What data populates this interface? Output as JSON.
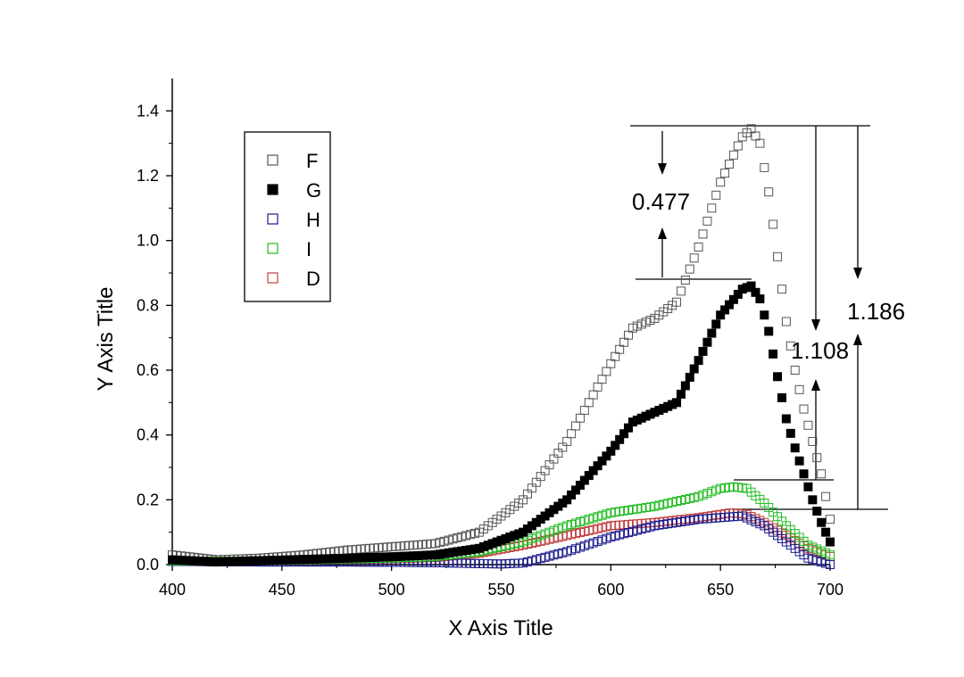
{
  "chart_data": {
    "type": "scatter",
    "xlabel": "X Axis Title",
    "ylabel": "Y Axis Title",
    "xlim": [
      400,
      700
    ],
    "ylim": [
      0,
      1.5
    ],
    "xticks": [
      "400",
      "450",
      "500",
      "550",
      "600",
      "650",
      "700"
    ],
    "yticks": [
      "0.0",
      "0.2",
      "0.4",
      "0.6",
      "0.8",
      "1.0",
      "1.2",
      "1.4"
    ],
    "x_step": 2,
    "series": [
      {
        "name": "F",
        "color": "#555555",
        "marker": "open-square",
        "points": [
          [
            400,
            0.03
          ],
          [
            420,
            0.015
          ],
          [
            440,
            0.02
          ],
          [
            460,
            0.03
          ],
          [
            480,
            0.045
          ],
          [
            500,
            0.055
          ],
          [
            520,
            0.065
          ],
          [
            540,
            0.1
          ],
          [
            560,
            0.2
          ],
          [
            580,
            0.38
          ],
          [
            600,
            0.62
          ],
          [
            610,
            0.73
          ],
          [
            620,
            0.76
          ],
          [
            630,
            0.81
          ],
          [
            640,
            0.98
          ],
          [
            650,
            1.18
          ],
          [
            660,
            1.32
          ],
          [
            664,
            1.345
          ],
          [
            668,
            1.3
          ],
          [
            672,
            1.15
          ],
          [
            676,
            0.95
          ],
          [
            680,
            0.75
          ],
          [
            684,
            0.6
          ],
          [
            688,
            0.48
          ],
          [
            692,
            0.38
          ],
          [
            696,
            0.28
          ],
          [
            700,
            0.14
          ]
        ]
      },
      {
        "name": "G",
        "color": "#000000",
        "marker": "filled-square",
        "points": [
          [
            400,
            0.015
          ],
          [
            420,
            0.008
          ],
          [
            440,
            0.012
          ],
          [
            460,
            0.016
          ],
          [
            480,
            0.02
          ],
          [
            500,
            0.024
          ],
          [
            520,
            0.03
          ],
          [
            540,
            0.05
          ],
          [
            560,
            0.1
          ],
          [
            580,
            0.2
          ],
          [
            600,
            0.35
          ],
          [
            610,
            0.44
          ],
          [
            620,
            0.47
          ],
          [
            630,
            0.5
          ],
          [
            640,
            0.63
          ],
          [
            650,
            0.77
          ],
          [
            660,
            0.85
          ],
          [
            664,
            0.86
          ],
          [
            668,
            0.82
          ],
          [
            672,
            0.72
          ],
          [
            676,
            0.58
          ],
          [
            680,
            0.45
          ],
          [
            684,
            0.36
          ],
          [
            688,
            0.28
          ],
          [
            692,
            0.2
          ],
          [
            696,
            0.13
          ],
          [
            700,
            0.07
          ]
        ]
      },
      {
        "name": "H",
        "color": "#1a1a8c",
        "marker": "open-square",
        "points": [
          [
            400,
            0.01
          ],
          [
            440,
            0.008
          ],
          [
            480,
            0.008
          ],
          [
            520,
            0.006
          ],
          [
            540,
            0.003
          ],
          [
            550,
            0.002
          ],
          [
            560,
            0.005
          ],
          [
            580,
            0.04
          ],
          [
            600,
            0.085
          ],
          [
            620,
            0.12
          ],
          [
            640,
            0.14
          ],
          [
            660,
            0.15
          ],
          [
            670,
            0.12
          ],
          [
            680,
            0.07
          ],
          [
            690,
            0.02
          ],
          [
            700,
            0.0
          ]
        ]
      },
      {
        "name": "I",
        "color": "#22bb22",
        "marker": "open-square",
        "points": [
          [
            400,
            0.012
          ],
          [
            420,
            0.01
          ],
          [
            440,
            0.012
          ],
          [
            460,
            0.015
          ],
          [
            480,
            0.018
          ],
          [
            500,
            0.02
          ],
          [
            520,
            0.025
          ],
          [
            540,
            0.04
          ],
          [
            560,
            0.07
          ],
          [
            580,
            0.12
          ],
          [
            600,
            0.16
          ],
          [
            620,
            0.18
          ],
          [
            640,
            0.21
          ],
          [
            650,
            0.235
          ],
          [
            656,
            0.24
          ],
          [
            662,
            0.235
          ],
          [
            670,
            0.19
          ],
          [
            680,
            0.12
          ],
          [
            690,
            0.06
          ],
          [
            700,
            0.03
          ]
        ]
      },
      {
        "name": "D",
        "color": "#c04040",
        "marker": "open-square",
        "points": [
          [
            400,
            0.012
          ],
          [
            420,
            0.01
          ],
          [
            440,
            0.012
          ],
          [
            460,
            0.014
          ],
          [
            480,
            0.016
          ],
          [
            500,
            0.018
          ],
          [
            520,
            0.022
          ],
          [
            540,
            0.035
          ],
          [
            560,
            0.06
          ],
          [
            580,
            0.09
          ],
          [
            600,
            0.12
          ],
          [
            620,
            0.13
          ],
          [
            640,
            0.145
          ],
          [
            655,
            0.16
          ],
          [
            662,
            0.155
          ],
          [
            670,
            0.13
          ],
          [
            680,
            0.09
          ],
          [
            690,
            0.05
          ],
          [
            700,
            0.025
          ]
        ]
      }
    ],
    "annotations": [
      {
        "text": "0.477",
        "from": 0.88,
        "to": 1.357
      },
      {
        "text": "1.108",
        "from": 0.26,
        "to": 1.357
      },
      {
        "text": "1.186",
        "from": 0.17,
        "to": 1.357
      }
    ],
    "legend": {
      "position": "top-left",
      "entries": [
        "F",
        "G",
        "H",
        "I",
        "D"
      ]
    }
  }
}
